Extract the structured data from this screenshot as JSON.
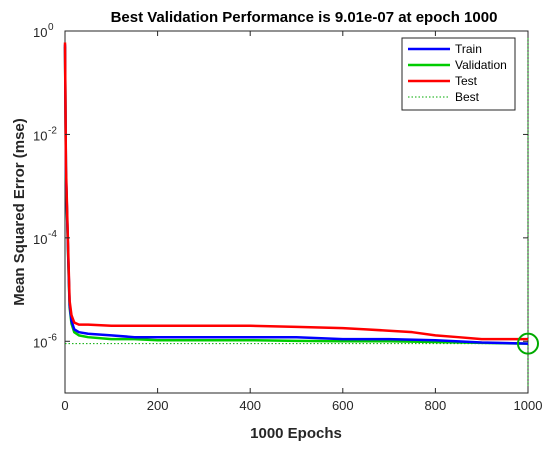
{
  "chart_data": {
    "type": "line",
    "title": "Best Validation Performance is 9.01e-07 at epoch 1000",
    "xlabel": "1000 Epochs",
    "ylabel": "Mean Squared Error  (mse)",
    "xlim": [
      0,
      1000
    ],
    "ylim": [
      1e-07,
      1
    ],
    "yscale": "log",
    "grid": false,
    "legend_position": "top-right",
    "x_ticks": [
      0,
      200,
      400,
      600,
      800,
      1000
    ],
    "y_ticks": [
      {
        "value": 1,
        "base": "10",
        "exp": "0"
      },
      {
        "value": 0.01,
        "base": "10",
        "exp": "-2"
      },
      {
        "value": 0.0001,
        "base": "10",
        "exp": "-4"
      },
      {
        "value": 1e-06,
        "base": "10",
        "exp": "-6"
      }
    ],
    "series": [
      {
        "name": "Train",
        "color": "#0000ff",
        "x": [
          0,
          2,
          5,
          8,
          10,
          14,
          20,
          30,
          50,
          100,
          150,
          200,
          300,
          400,
          500,
          600,
          700,
          800,
          900,
          1000
        ],
        "y": [
          0.55,
          0.002,
          0.0002,
          2e-05,
          5e-06,
          2.5e-06,
          1.7e-06,
          1.5e-06,
          1.4e-06,
          1.3e-06,
          1.2e-06,
          1.2e-06,
          1.2e-06,
          1.2e-06,
          1.2e-06,
          1.1e-06,
          1.1e-06,
          1.05e-06,
          9.5e-07,
          9e-07
        ]
      },
      {
        "name": "Validation",
        "color": "#00cc00",
        "x": [
          0,
          2,
          5,
          8,
          10,
          14,
          20,
          30,
          50,
          100,
          150,
          200,
          300,
          400,
          500,
          600,
          700,
          800,
          900,
          1000
        ],
        "y": [
          0.5,
          0.0018,
          0.00018,
          1.8e-05,
          4.5e-06,
          2.2e-06,
          1.5e-06,
          1.3e-06,
          1.2e-06,
          1.1e-06,
          1.1e-06,
          1.05e-06,
          1.05e-06,
          1.05e-06,
          1.02e-06,
          1e-06,
          1e-06,
          9.7e-07,
          9.3e-07,
          9.01e-07
        ]
      },
      {
        "name": "Test",
        "color": "#ff0000",
        "x": [
          0,
          2,
          5,
          8,
          10,
          14,
          20,
          30,
          50,
          100,
          200,
          300,
          400,
          500,
          600,
          650,
          700,
          750,
          800,
          850,
          900,
          950,
          1000
        ],
        "y": [
          0.6,
          0.0025,
          0.00025,
          2.5e-05,
          6e-06,
          3.2e-06,
          2.3e-06,
          2.1e-06,
          2.1e-06,
          2e-06,
          2e-06,
          2e-06,
          2e-06,
          1.9e-06,
          1.8e-06,
          1.7e-06,
          1.6e-06,
          1.5e-06,
          1.3e-06,
          1.2e-06,
          1.1e-06,
          1.1e-06,
          1.1e-06
        ]
      }
    ],
    "best": {
      "name": "Best",
      "color": "#00aa00",
      "epoch": 1000,
      "value": 9.01e-07
    }
  }
}
